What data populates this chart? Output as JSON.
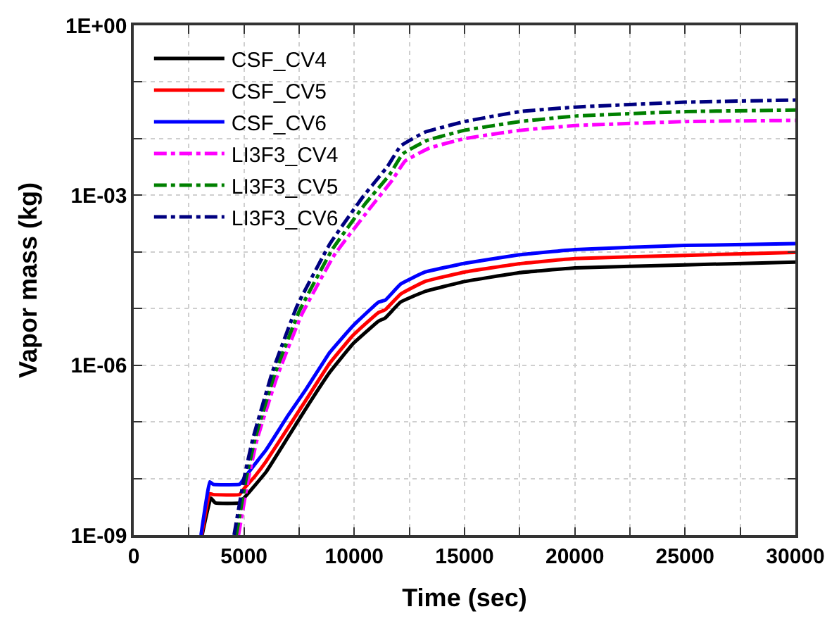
{
  "chart_data": {
    "type": "line",
    "xlabel": "Time (sec)",
    "ylabel": "Vapor mass (kg)",
    "log": "y",
    "grid": true,
    "legend": "top left",
    "marker": "none",
    "xlim": [
      0,
      30000
    ],
    "xticks": [
      0,
      {
        "value": 2500,
        "label": null
      },
      5000,
      {
        "value": 7500,
        "label": null
      },
      10000,
      {
        "value": 12500,
        "label": null
      },
      15000,
      {
        "value": 17500,
        "label": null
      },
      20000,
      {
        "value": 22500,
        "label": null
      },
      25000,
      {
        "value": 27500,
        "label": null
      },
      30000
    ],
    "ylim": [
      1e-09,
      1
    ],
    "yticks": [
      {
        "value": 1e-09,
        "label": "1E-09"
      },
      {
        "value": 1e-08,
        "label": null
      },
      {
        "value": 1e-07,
        "label": null
      },
      {
        "value": 1e-06,
        "label": "1E-06"
      },
      {
        "value": 1e-05,
        "label": null
      },
      {
        "value": 0.0001,
        "label": null
      },
      {
        "value": 0.001,
        "label": "1E-03"
      },
      {
        "value": 0.01,
        "label": null
      },
      {
        "value": 0.1,
        "label": null
      },
      {
        "value": 1,
        "label": "1E+00"
      }
    ],
    "series": [
      {
        "name": "CSF_CV4",
        "color": "#000000",
        "line_style": "solid",
        "x": [
          3100,
          3500,
          3700,
          4800,
          5000,
          5500,
          6000,
          7000,
          7800,
          8900,
          9950,
          11100,
          11400,
          12100,
          13200,
          15000,
          17500,
          20000,
          25000,
          30000
        ],
        "values": [
          1e-09,
          4.5e-09,
          3.7e-09,
          3.7e-09,
          4.5e-09,
          7.6e-09,
          1.3e-08,
          5.4e-08,
          1.7e-07,
          7.6e-07,
          2.4e-06,
          6e-06,
          6.8e-06,
          1.3e-05,
          2e-05,
          3e-05,
          4.3e-05,
          5.2e-05,
          5.9e-05,
          6.6e-05
        ]
      },
      {
        "name": "CSF_CV5",
        "color": "#ff0000",
        "line_style": "solid",
        "x": [
          3080,
          3450,
          3600,
          4800,
          5000,
          5500,
          6000,
          7000,
          7800,
          8900,
          9950,
          11100,
          11400,
          12100,
          13200,
          15000,
          17500,
          20000,
          25000,
          30000
        ],
        "values": [
          1e-09,
          5.4e-09,
          5.2e-09,
          5.2e-09,
          6.6e-09,
          1.1e-08,
          2e-08,
          7.9e-08,
          2.4e-07,
          1.1e-06,
          3.4e-06,
          8.5e-06,
          9.5e-06,
          1.8e-05,
          3e-05,
          4.4e-05,
          6.2e-05,
          7.6e-05,
          8.7e-05,
          9.8e-05
        ]
      },
      {
        "name": "CSF_CV6",
        "color": "#0000ff",
        "line_style": "solid",
        "x": [
          3050,
          3450,
          3600,
          4800,
          5000,
          5500,
          6000,
          7000,
          7800,
          8900,
          9950,
          11100,
          11400,
          12100,
          13200,
          15000,
          17500,
          20000,
          25000,
          30000
        ],
        "values": [
          1e-09,
          8.7e-09,
          7.9e-09,
          7.9e-09,
          1e-08,
          1.8e-08,
          3.2e-08,
          1.3e-07,
          3.7e-07,
          1.7e-06,
          5e-06,
          1.3e-05,
          1.4e-05,
          2.7e-05,
          4.4e-05,
          6.3e-05,
          8.9e-05,
          0.00011,
          0.00013,
          0.00014
        ]
      },
      {
        "name": "LI3F3_CV4",
        "color": "#ff00ff",
        "line_style": "dashdot",
        "x": [
          4750,
          5200,
          5600,
          6500,
          7600,
          9100,
          10600,
          11700,
          12300,
          13400,
          15000,
          17500,
          20000,
          25000,
          30000
        ],
        "values": [
          1e-09,
          1e-08,
          5e-08,
          6.3e-07,
          7.6e-06,
          8.9e-05,
          0.00052,
          0.0018,
          0.004,
          0.0068,
          0.01,
          0.014,
          0.017,
          0.02,
          0.021
        ]
      },
      {
        "name": "LI3F3_CV5",
        "color": "#008000",
        "line_style": "dashdot",
        "x": [
          4650,
          5100,
          5500,
          6400,
          7500,
          9000,
          10500,
          11600,
          12200,
          13300,
          15000,
          17500,
          20000,
          25000,
          30000
        ],
        "values": [
          1e-09,
          1e-08,
          5e-08,
          7.1e-07,
          8.9e-06,
          0.00011,
          0.00071,
          0.0023,
          0.0054,
          0.0093,
          0.014,
          0.02,
          0.025,
          0.03,
          0.032
        ]
      },
      {
        "name": "LI3F3_CV6",
        "color": "#000080",
        "line_style": "dashdot",
        "x": [
          4550,
          5000,
          5400,
          6300,
          7400,
          8900,
          10400,
          11500,
          12100,
          13200,
          15000,
          17500,
          20000,
          25000,
          30000
        ],
        "values": [
          1e-09,
          1e-08,
          5e-08,
          7.9e-07,
          1.1e-05,
          0.00014,
          0.00095,
          0.0032,
          0.0074,
          0.013,
          0.02,
          0.03,
          0.036,
          0.044,
          0.048
        ]
      }
    ]
  }
}
